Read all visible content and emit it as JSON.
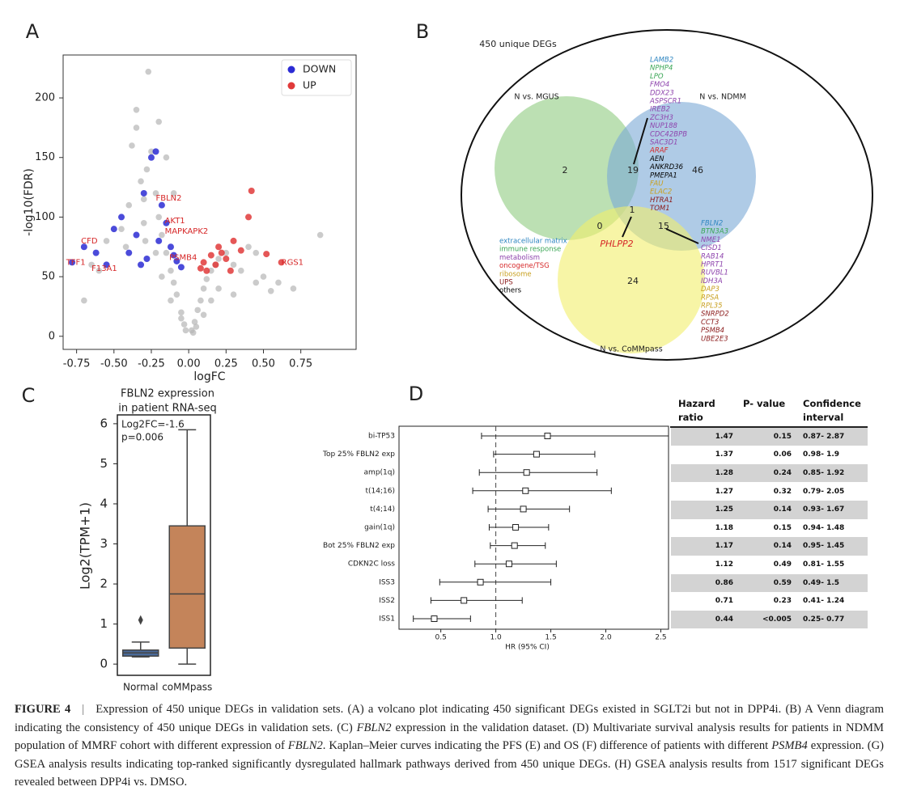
{
  "chart_data": [
    {
      "type": "scatter",
      "panel_label": "A",
      "xlabel": "logFC",
      "ylabel": "-log10(FDR)",
      "xlim": [
        -0.84,
        1.12
      ],
      "ylim": [
        -11,
        236
      ],
      "xticks": [
        -0.75,
        {
          "value": -0.5,
          "label": "-0.50"
        },
        -0.25,
        {
          "value": 0,
          "label": "0.00"
        },
        0.25,
        {
          "value": 0.5,
          "label": "0.50"
        },
        0.75
      ],
      "yticks": [
        0,
        50,
        100,
        150,
        200
      ],
      "legend": "upper right",
      "background_points": {
        "color": "#b5b5b5",
        "x": [
          -0.45,
          -0.4,
          -0.35,
          -0.32,
          -0.3,
          -0.28,
          -0.25,
          -0.22,
          -0.2,
          -0.18,
          -0.15,
          -0.12,
          -0.1,
          -0.08,
          -0.05,
          -0.03,
          -0.02,
          0.02,
          0.04,
          0.06,
          0.08,
          0.1,
          0.12,
          0.15,
          0.18,
          0.2,
          0.25,
          0.3,
          0.35,
          0.4,
          0.45,
          0.5,
          0.6,
          0.7,
          0.88,
          -0.55,
          -0.6,
          -0.7,
          -0.35,
          -0.27,
          -0.2,
          -0.15,
          -0.1,
          -0.38,
          -0.42,
          -0.3,
          0.05,
          0.1,
          0.15,
          0.2,
          0.03,
          -0.05,
          -0.12,
          -0.18,
          -0.22,
          -0.29,
          0.3,
          0.45,
          -0.65,
          0.55
        ],
        "y": [
          90,
          110,
          190,
          130,
          115,
          140,
          155,
          120,
          100,
          85,
          70,
          55,
          45,
          35,
          20,
          10,
          5,
          5,
          12,
          22,
          30,
          40,
          48,
          55,
          60,
          65,
          70,
          60,
          55,
          75,
          70,
          50,
          45,
          40,
          85,
          80,
          55,
          30,
          175,
          222,
          180,
          150,
          120,
          160,
          75,
          95,
          8,
          18,
          30,
          40,
          3,
          15,
          30,
          50,
          70,
          80,
          35,
          45,
          60,
          38
        ]
      },
      "series": [
        {
          "name": "DOWN",
          "color": "#2b2bd4",
          "x": [
            -0.78,
            -0.7,
            -0.62,
            -0.55,
            -0.5,
            -0.45,
            -0.4,
            -0.35,
            -0.3,
            -0.28,
            -0.25,
            -0.22,
            -0.2,
            -0.18,
            -0.15,
            -0.12,
            -0.08,
            -0.05,
            -0.32,
            -0.1
          ],
          "y": [
            62,
            75,
            70,
            60,
            90,
            100,
            70,
            85,
            120,
            65,
            150,
            155,
            80,
            110,
            95,
            75,
            63,
            58,
            60,
            68
          ]
        },
        {
          "name": "UP",
          "color": "#e03a3a",
          "x": [
            0.62,
            0.52,
            0.42,
            0.4,
            0.35,
            0.3,
            0.28,
            0.25,
            0.22,
            0.2,
            0.18,
            0.15,
            0.12,
            0.1,
            0.08
          ],
          "y": [
            62,
            69,
            122,
            100,
            72,
            80,
            55,
            65,
            70,
            75,
            60,
            68,
            55,
            62,
            57
          ]
        }
      ],
      "annotation_color": "#d62728",
      "annotations": [
        {
          "text": "FBLN2",
          "x": -0.22,
          "y": 116
        },
        {
          "text": "AKT1",
          "x": -0.16,
          "y": 97
        },
        {
          "text": "MAPKAPK2",
          "x": -0.16,
          "y": 88
        },
        {
          "text": "PSMB4",
          "x": -0.13,
          "y": 66
        },
        {
          "text": "CFD",
          "x": -0.72,
          "y": 80
        },
        {
          "text": "TFF1",
          "x": -0.82,
          "y": 62
        },
        {
          "text": "F13A1",
          "x": -0.65,
          "y": 57
        },
        {
          "text": "RGS1",
          "x": 0.62,
          "y": 62
        }
      ]
    },
    {
      "type": "box",
      "panel_label": "C",
      "title_lines": [
        "FBLN2 expression",
        "in patient RNA-seq"
      ],
      "annotations": [
        "Log2FC=-1.6",
        "p=0.006"
      ],
      "ylabel": "Log2(TPM+1)",
      "categories": [
        "Normal",
        "coMMpass"
      ],
      "boxes": [
        {
          "low": 0.18,
          "q1": 0.2,
          "median": 0.28,
          "q3": 0.35,
          "high": 0.55,
          "outliers": [
            1.1
          ],
          "color": "#4a6a9a"
        },
        {
          "low": 0,
          "q1": 0.4,
          "median": 1.75,
          "q3": 3.45,
          "high": 5.85,
          "outliers": [],
          "color": "#c4845a"
        }
      ],
      "ylim": [
        -0.28,
        6.22
      ],
      "yticks": [
        0,
        1,
        2,
        3,
        4,
        5,
        6
      ]
    },
    {
      "type": "forest",
      "panel_label": "D",
      "xlabel": "HR (95% CI)",
      "columns": [
        "Hazard ratio",
        "P- value",
        "Confidence interval"
      ],
      "categories": [
        "bi-TP53",
        "Top 25% FBLN2 exp",
        "amp(1q)",
        "t(14;16)",
        "t(4;14)",
        "gain(1q)",
        "Bot 25% FBLN2 exp",
        "CDKN2C loss",
        "ISS3",
        "ISS2",
        "ISS1"
      ],
      "hr": [
        1.47,
        1.37,
        1.28,
        1.27,
        1.25,
        1.18,
        1.17,
        1.12,
        0.86,
        0.71,
        0.44
      ],
      "ci_low": [
        0.87,
        0.98,
        0.85,
        0.79,
        0.93,
        0.94,
        0.95,
        0.81,
        0.49,
        0.41,
        0.25
      ],
      "ci_high": [
        2.87,
        1.9,
        1.92,
        2.05,
        1.67,
        1.48,
        1.45,
        1.55,
        1.5,
        1.24,
        0.77
      ],
      "p_values": [
        "0.15",
        "0.06",
        "0.24",
        "0.32",
        "0.14",
        "0.15",
        "0.14",
        "0.49",
        "0.59",
        "0.23",
        "<0.005"
      ],
      "ci_labels": [
        "0.87- 2.87",
        "0.98- 1.9",
        "0.85- 1.92",
        "0.79- 2.05",
        "0.93- 1.67",
        "0.94- 1.48",
        "0.95- 1.45",
        "0.81- 1.55",
        "0.49- 1.5",
        "0.41- 1.24",
        "0.25- 0.77"
      ],
      "reference_line": 1,
      "xlim": [
        0.12,
        2.57
      ],
      "xticks": [
        0.5,
        {
          "value": 1,
          "label": "1.0"
        },
        1.5,
        {
          "value": 2,
          "label": "2.0"
        },
        2.5
      ]
    }
  ],
  "venn": {
    "panel_label": "B",
    "title": "450 unique DEGs",
    "sets": [
      "N vs. MGUS",
      "N vs. NDMM",
      "N vs. CoMMpass"
    ],
    "counts": {
      "mgus_only": "2",
      "mgus_ndmm": "19",
      "ndmm_only": "46",
      "mgus_commpass": "0",
      "all": "1",
      "ndmm_commpass": "15",
      "commpass_only": "24"
    },
    "center_gene": "PHLPP2",
    "genes_mgus_ndmm": [
      {
        "name": "LAMB2",
        "color": "#2e86c1"
      },
      {
        "name": "NPHP4",
        "color": "#3aa655"
      },
      {
        "name": "LPO",
        "color": "#3aa655"
      },
      {
        "name": "FMO4",
        "color": "#8e44ad"
      },
      {
        "name": "DDX23",
        "color": "#8e44ad"
      },
      {
        "name": "ASPSCR1",
        "color": "#8e44ad"
      },
      {
        "name": "IREB2",
        "color": "#8e44ad"
      },
      {
        "name": "ZC3H3",
        "color": "#8e44ad"
      },
      {
        "name": "NUP188",
        "color": "#8e44ad"
      },
      {
        "name": "CDC42BPB",
        "color": "#8e44ad"
      },
      {
        "name": "SAC3D1",
        "color": "#8e44ad"
      },
      {
        "name": "ARAF",
        "color": "#d62728"
      },
      {
        "name": "AEN",
        "color": "#000000"
      },
      {
        "name": "ANKRD36",
        "color": "#000000"
      },
      {
        "name": "PMEPA1",
        "color": "#000000"
      },
      {
        "name": "FAU",
        "color": "#c8a020"
      },
      {
        "name": "ELAC2",
        "color": "#c8a020"
      },
      {
        "name": "HTRA1",
        "color": "#8b1a1a"
      },
      {
        "name": "TOM1",
        "color": "#8b1a1a"
      }
    ],
    "genes_ndmm_commpass": [
      {
        "name": "FBLN2",
        "color": "#2e86c1"
      },
      {
        "name": "BTN3A3",
        "color": "#3aa655"
      },
      {
        "name": "NME1",
        "color": "#8e44ad"
      },
      {
        "name": "CISD1",
        "color": "#8e44ad"
      },
      {
        "name": "RAB14",
        "color": "#8e44ad"
      },
      {
        "name": "HPRT1",
        "color": "#8e44ad"
      },
      {
        "name": "RUVBL1",
        "color": "#8e44ad"
      },
      {
        "name": "IDH3A",
        "color": "#8e44ad"
      },
      {
        "name": "DAP3",
        "color": "#c8a020"
      },
      {
        "name": "RPSA",
        "color": "#c8a020"
      },
      {
        "name": "RPL35",
        "color": "#c8a020"
      },
      {
        "name": "SNRPD2",
        "color": "#8b1a1a"
      },
      {
        "name": "CCT3",
        "color": "#8b1a1a"
      },
      {
        "name": "PSMB4",
        "color": "#8b1a1a"
      },
      {
        "name": "UBE2E3",
        "color": "#8b1a1a"
      }
    ],
    "legend": [
      {
        "name": "extracellular matrix",
        "color": "#2e86c1"
      },
      {
        "name": "immune response",
        "color": "#3aa655"
      },
      {
        "name": "metabolism",
        "color": "#8e44ad"
      },
      {
        "name": "oncogene/TSG",
        "color": "#d62728"
      },
      {
        "name": "ribosome",
        "color": "#c8a020"
      },
      {
        "name": "UPS",
        "color": "#8b1a1a"
      },
      {
        "name": "others",
        "color": "#000000"
      }
    ]
  },
  "caption": {
    "label": "FIGURE 4",
    "separator": "|",
    "parts": [
      {
        "text": "Expression of 450 unique DEGs in validation sets. (A) a volcano plot indicating 450 significant DEGs existed in SGLT2i but not in DPP4i. (B) A Venn diagram indicating the consistency of 450 unique DEGs in validation sets. (C) ",
        "italic": false
      },
      {
        "text": "FBLN2",
        "italic": true
      },
      {
        "text": " expression in the validation dataset. (D) Multivariate survival analysis results for patients in NDMM population of MMRF cohort with different expression of ",
        "italic": false
      },
      {
        "text": "FBLN2",
        "italic": true
      },
      {
        "text": ". Kaplan–Meier curves indicating the PFS (E) and OS (F) difference of patients with different ",
        "italic": false
      },
      {
        "text": "PSMB4",
        "italic": true
      },
      {
        "text": " expression. (G) GSEA analysis results indicating top-ranked significantly dysregulated hallmark pathways derived from 450 unique DEGs. (H) GSEA analysis results from 1517 significant DEGs revealed between DPP4i vs. DMSO.",
        "italic": false
      }
    ]
  }
}
